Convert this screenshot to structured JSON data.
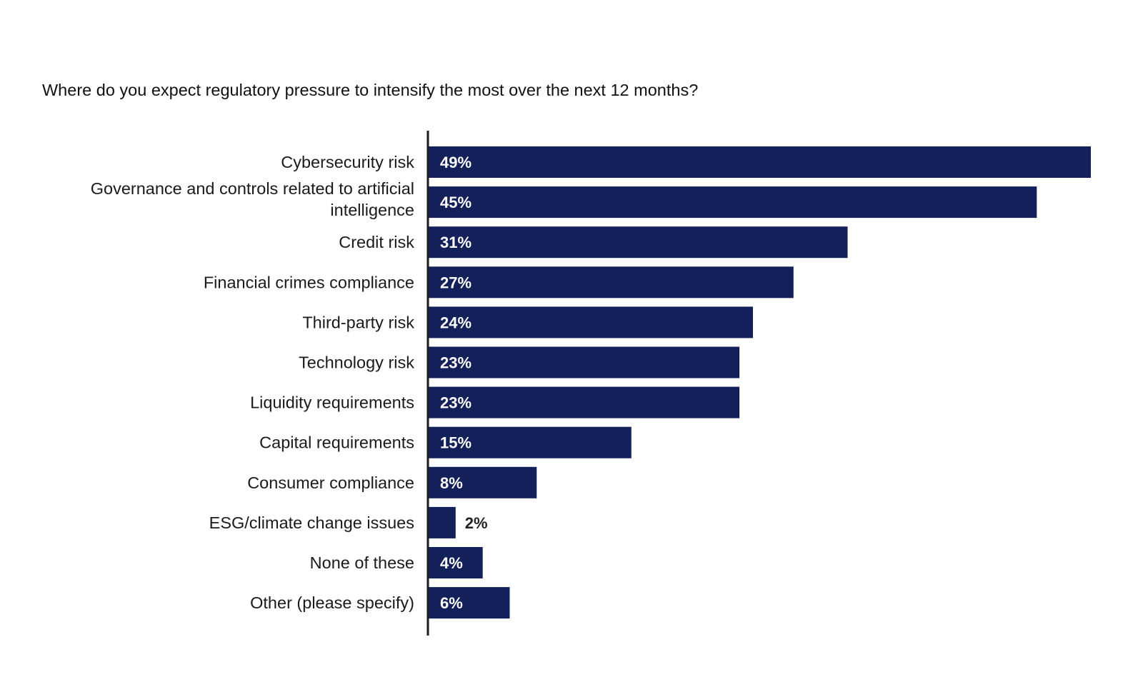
{
  "chart_data": {
    "type": "bar",
    "orientation": "horizontal",
    "title": "Where do you expect regulatory pressure to intensify the most over the next 12 months?",
    "categories": [
      "Cybersecurity risk",
      "Governance and controls related to artificial intelligence",
      "Credit risk",
      "Financial crimes compliance",
      "Third-party risk",
      "Technology risk",
      "Liquidity requirements",
      "Capital requirements",
      "Consumer compliance",
      "ESG/climate change issues",
      "None of these",
      "Other (please specify)"
    ],
    "values": [
      49,
      45,
      31,
      27,
      24,
      23,
      23,
      15,
      8,
      2,
      4,
      6
    ],
    "value_labels": [
      "49%",
      "45%",
      "31%",
      "27%",
      "24%",
      "23%",
      "23%",
      "15%",
      "8%",
      "2%",
      "4%",
      "6%"
    ],
    "unit": "%",
    "xlim": [
      0,
      49
    ],
    "grid": false,
    "legend": "none",
    "bar_color": "#14205a",
    "label_inside_color": "#ffffff",
    "label_outside_color": "#222222"
  }
}
